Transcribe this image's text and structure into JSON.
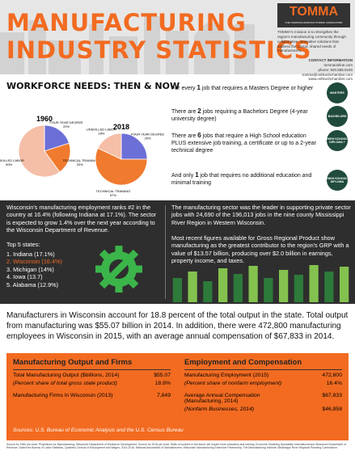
{
  "header": {
    "title_line1": "MANUFACTURING",
    "title_line2": "INDUSTRY STATISTICS",
    "logo": "TOMMA",
    "logo_sub": "THE OSHKOSH MANUFACTURING ASSOCIATION",
    "description": "TOMMA's mission is to strengthen the region's manufacturing community through collaborative, innovative solutions that address the critical, shared needs of manufacturers.",
    "contact_title": "CONTACT INFORMATION",
    "contact": [
      "tommaonline.com",
      "phone: 920.555.0100",
      "tomma@oshkoshchamber.com",
      "www.oshkoshchamber.com"
    ]
  },
  "workforce": {
    "title": "WORKFORCE NEEDS: THEN & NOW",
    "pies": [
      {
        "year": "1960",
        "slices": [
          {
            "label": "FOUR YEAR DEGREE",
            "value": 20,
            "value_label": "20%",
            "color": "#6c6fd6"
          },
          {
            "label": "TECHNICAL TRAINING",
            "value": 20,
            "value_label": "20%",
            "color": "#f07a2e"
          },
          {
            "label": "UNSKILLED LABOR",
            "value": 60,
            "value_label": "60%",
            "color": "#f5bea7"
          }
        ]
      },
      {
        "year": "2018",
        "slices": [
          {
            "label": "FOUR YEAR DEGREE",
            "value": 25,
            "value_label": "25%",
            "color": "#6c6fd6"
          },
          {
            "label": "TECHNICAL TRAINING",
            "value": 57,
            "value_label": "57%",
            "color": "#f07a2e"
          },
          {
            "label": "UNSKILLED LABOR",
            "value": 18,
            "value_label": "18%",
            "color": "#f5bea7"
          }
        ]
      }
    ],
    "statements": [
      {
        "pre": "For every ",
        "num": "1",
        "post": " job that requires a Masters Degree or higher",
        "icon": "MASTERS"
      },
      {
        "pre": "There are ",
        "num": "2",
        "post": " jobs requiring a Bachelors Degree (4-year university degree)",
        "icon": "BACHELORS"
      },
      {
        "pre": "There are ",
        "num": "6",
        "post": " jobs that require a High School education PLUS extensive job training, a certificate or up to a 2-year technical degree",
        "icon": "HIGH SCHOOL DIPLOMA +"
      },
      {
        "pre": "And only ",
        "num": "1",
        "post": " job that requires no additional education and minimal training",
        "icon": "HIGH SCHOOL DIPLOMA"
      }
    ]
  },
  "employment": {
    "left_text": "Wisconsin's manufacturing employment ranks #2 in the country at 16.4% (following Indiana at 17.1%). The sector is expected to grow 1.4% over the next year according to the Wisconsin Department of Revenue.",
    "states_title": "Top 5 states:",
    "states": [
      "1. Indiana (17.1%)",
      "2. Wisconsin (16.4%)",
      "3. Michigan (14%)",
      "4. Iowa (13.7)",
      "5. Alabama (12.9%)"
    ],
    "right_text1": "The manufacturing sector was the leader in supporting private sector jobs with 24,690 of the 196,013 jobs in the nine county Mississippi River Region in Western Wisconsin.",
    "right_text2": "Most recent figures available for Gross Regional Product show manufacturing as the greatest contributor to the region's GRP with a value of $13.57 billion, producing over $2.0 billion in earnings, property income, and taxes.",
    "bars": {
      "values": [
        30,
        38,
        26,
        42,
        35,
        45,
        30,
        40,
        34,
        46,
        38,
        44
      ],
      "colors": [
        "#2d7a3a",
        "#84c24f"
      ],
      "ylim": [
        0,
        50
      ]
    }
  },
  "summary": "Manufacturers in Wisconsin account for 18.8 percent of the total output in the state. Total output from manufacturing was $55.07 billion in 2014. In addition, there were 472,800 manufacturing employees in Wisconsin in 2015, with an average annual compensation of $67,833 in 2014.",
  "table": {
    "left_title": "Manufacturing Output and Firms",
    "left_rows": [
      [
        "Total Manufacturing Output ($billions, 2014)",
        "$55.07"
      ],
      [
        "(Percent share of total gross state product)",
        "18.8%"
      ],
      [
        "Manufacturing Firms in Wisconsin (2013)",
        "7,849"
      ]
    ],
    "right_title": "Employment and Compensation",
    "right_rows": [
      [
        "Manufacturing Employment (2015)",
        "472,800"
      ],
      [
        "(Percent share of nonfarm employment)",
        "16.4%"
      ],
      [
        "Average Annual Compensation (Manufacturing, 2014)",
        "$67,833"
      ],
      [
        "(Nonfarm Businesses, 2014)",
        "$46,858"
      ]
    ],
    "sources": "Sources: U.S. Bureau of Economic Analysis and the U.S. Census Bureau"
  },
  "footnotes": "Source for 1960 pie chart: Projections for Manufacturing, Wisconsin Department of Workforce Development. Source for 2018 pie chart: Skills of workers in the future will require more education and training; Economic Modeling Specialists International and Wisconsin Department of Revenue. Data from Bureau of Labor Statistics, Quarterly Census of Employment and Wages, 2014-2016; National Association of Manufacturers; Wisconsin Manufacturing Extension Partnership; The Manufacturing Institute; Mississippi River Regional Planning Commission."
}
